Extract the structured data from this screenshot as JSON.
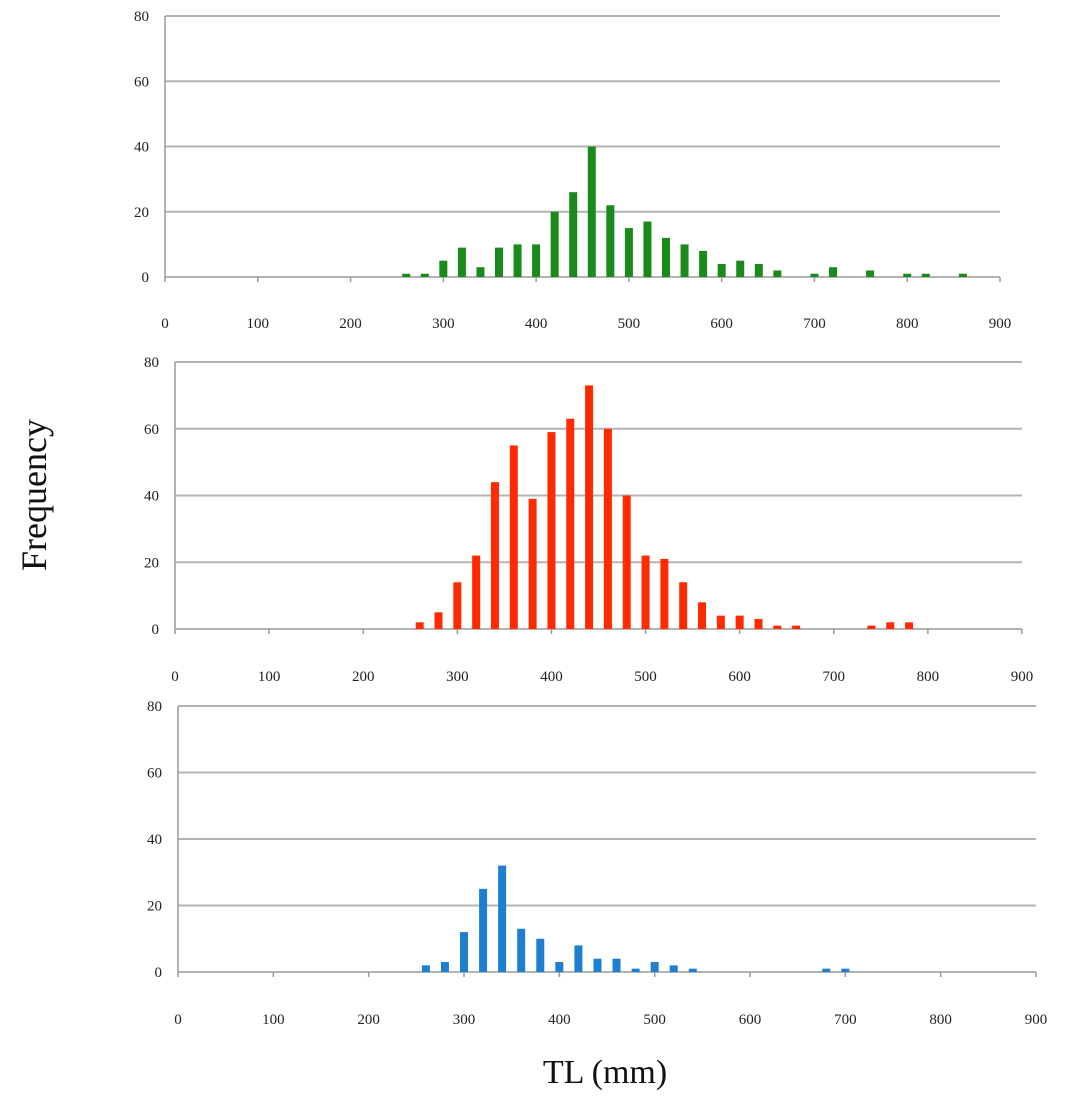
{
  "figure": {
    "ylabel": "Frequency",
    "xlabel": "TL (mm)"
  },
  "chart_data": [
    {
      "type": "bar",
      "color": "#1a8a1a",
      "xlim": [
        0,
        900
      ],
      "ylim": [
        0,
        80
      ],
      "xticks": [
        "0",
        "100",
        "200",
        "300",
        "400",
        "500",
        "600",
        "700",
        "800",
        "900"
      ],
      "yticks": [
        "0",
        "20",
        "40",
        "60",
        "80"
      ],
      "grid": true,
      "x": [
        260,
        280,
        300,
        320,
        340,
        360,
        380,
        400,
        420,
        440,
        460,
        480,
        500,
        520,
        540,
        560,
        580,
        600,
        620,
        640,
        660,
        700,
        720,
        760,
        800,
        820,
        860
      ],
      "values": [
        1,
        1,
        5,
        9,
        3,
        9,
        10,
        10,
        20,
        26,
        40,
        22,
        15,
        17,
        12,
        10,
        8,
        4,
        5,
        4,
        2,
        1,
        3,
        2,
        1,
        1,
        1
      ]
    },
    {
      "type": "bar",
      "color": "#ff2a00",
      "xlim": [
        0,
        900
      ],
      "ylim": [
        0,
        80
      ],
      "xticks": [
        "0",
        "100",
        "200",
        "300",
        "400",
        "500",
        "600",
        "700",
        "800",
        "900"
      ],
      "yticks": [
        "0",
        "20",
        "40",
        "60",
        "80"
      ],
      "grid": true,
      "x": [
        260,
        280,
        300,
        320,
        340,
        360,
        380,
        400,
        420,
        440,
        460,
        480,
        500,
        520,
        540,
        560,
        580,
        600,
        620,
        640,
        660,
        740,
        760,
        780
      ],
      "values": [
        2,
        5,
        14,
        22,
        44,
        55,
        39,
        59,
        63,
        73,
        60,
        40,
        22,
        21,
        14,
        8,
        4,
        4,
        3,
        1,
        1,
        1,
        2,
        2
      ]
    },
    {
      "type": "bar",
      "color": "#1e7fd0",
      "xlim": [
        0,
        900
      ],
      "ylim": [
        0,
        80
      ],
      "xticks": [
        "0",
        "100",
        "200",
        "300",
        "400",
        "500",
        "600",
        "700",
        "800",
        "900"
      ],
      "yticks": [
        "0",
        "20",
        "40",
        "60",
        "80"
      ],
      "grid": true,
      "x": [
        260,
        280,
        300,
        320,
        340,
        360,
        380,
        400,
        420,
        440,
        460,
        480,
        500,
        520,
        540,
        680,
        700
      ],
      "values": [
        2,
        3,
        12,
        25,
        32,
        13,
        10,
        3,
        8,
        4,
        4,
        1,
        3,
        2,
        1,
        1,
        1
      ]
    }
  ]
}
